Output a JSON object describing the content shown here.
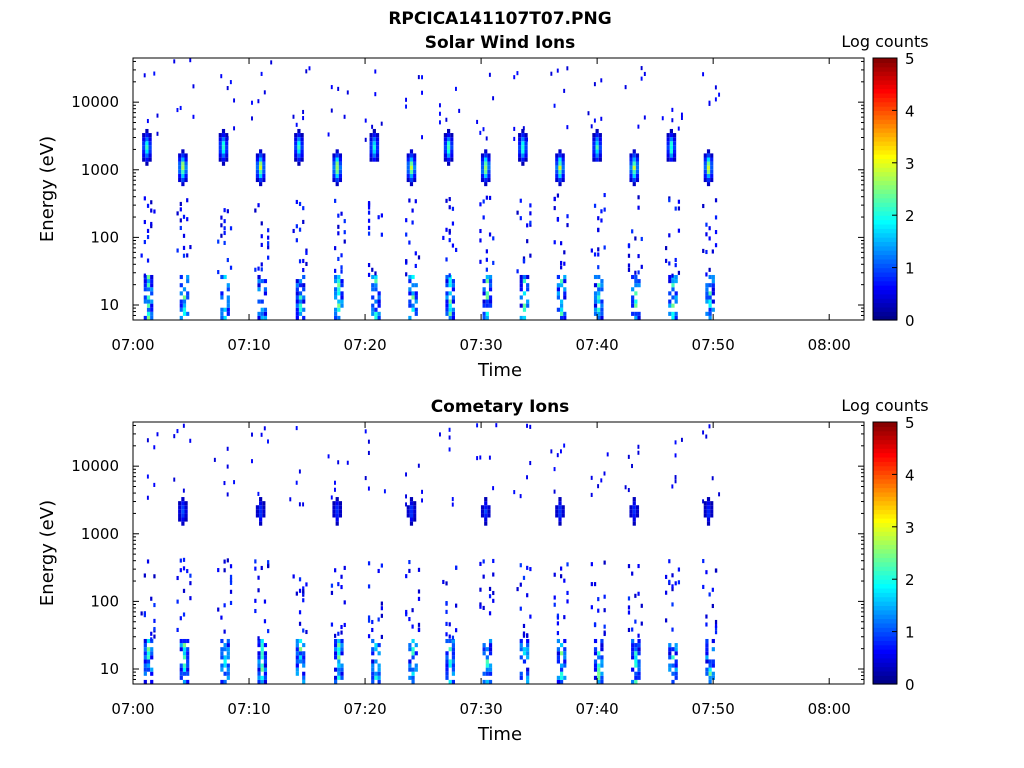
{
  "figure_title": "RPCICA141107T07.PNG",
  "colors": {
    "colormap": [
      "#00007f",
      "#0000ff",
      "#007fff",
      "#00ffff",
      "#7fff7f",
      "#ffff00",
      "#ff7f00",
      "#ff0000",
      "#7f0000"
    ]
  },
  "chart_data": [
    {
      "type": "heatmap",
      "title": "Solar Wind Ions",
      "xlabel": "Time",
      "ylabel": "Energy (eV)",
      "x_tick_labels": [
        "07:00",
        "07:10",
        "07:20",
        "07:30",
        "07:40",
        "07:50",
        "08:00"
      ],
      "x_tick_minutes": [
        0,
        10,
        20,
        30,
        40,
        50,
        60
      ],
      "xlim_minutes": [
        0,
        63
      ],
      "ylim": [
        6,
        45000
      ],
      "yscale": "log",
      "y_tick_labels": [
        "10",
        "100",
        "1000",
        "10000"
      ],
      "y_tick_values": [
        10,
        100,
        1000,
        10000
      ],
      "colorbar": {
        "label": "Log counts",
        "min": 0,
        "max": 5,
        "tick_labels": [
          "0",
          "1",
          "2",
          "3",
          "4",
          "5"
        ]
      },
      "scan_times_minutes": [
        1.2,
        4.3,
        7.8,
        11.0,
        14.3,
        17.6,
        20.8,
        24.0,
        27.2,
        30.4,
        33.6,
        36.8,
        40.0,
        43.2,
        46.4,
        49.6
      ],
      "peaks": [
        {
          "t": 1.2,
          "energy": 2000,
          "log_counts": 2.3
        },
        {
          "t": 4.3,
          "energy": 1000,
          "log_counts": 3.0
        },
        {
          "t": 7.8,
          "energy": 2000,
          "log_counts": 2.3
        },
        {
          "t": 11.0,
          "energy": 1000,
          "log_counts": 3.0
        },
        {
          "t": 14.3,
          "energy": 2000,
          "log_counts": 2.3
        },
        {
          "t": 17.6,
          "energy": 1000,
          "log_counts": 3.0
        },
        {
          "t": 20.8,
          "energy": 2000,
          "log_counts": 2.3
        },
        {
          "t": 24.0,
          "energy": 1000,
          "log_counts": 3.0
        },
        {
          "t": 27.2,
          "energy": 2000,
          "log_counts": 2.3
        },
        {
          "t": 30.4,
          "energy": 1000,
          "log_counts": 3.0
        },
        {
          "t": 33.6,
          "energy": 2000,
          "log_counts": 2.3
        },
        {
          "t": 36.8,
          "energy": 1000,
          "log_counts": 3.0
        },
        {
          "t": 40.0,
          "energy": 2000,
          "log_counts": 2.3
        },
        {
          "t": 43.2,
          "energy": 1000,
          "log_counts": 3.0
        },
        {
          "t": 46.4,
          "energy": 2000,
          "log_counts": 2.3
        },
        {
          "t": 49.6,
          "energy": 1000,
          "log_counts": 3.0
        }
      ],
      "low_energy_band": {
        "energy_range": [
          6,
          25
        ],
        "log_counts": 2.5
      }
    },
    {
      "type": "heatmap",
      "title": "Cometary Ions",
      "xlabel": "Time",
      "ylabel": "Energy (eV)",
      "x_tick_labels": [
        "07:00",
        "07:10",
        "07:20",
        "07:30",
        "07:40",
        "07:50",
        "08:00"
      ],
      "x_tick_minutes": [
        0,
        10,
        20,
        30,
        40,
        50,
        60
      ],
      "xlim_minutes": [
        0,
        63
      ],
      "ylim": [
        6,
        45000
      ],
      "yscale": "log",
      "y_tick_labels": [
        "10",
        "100",
        "1000",
        "10000"
      ],
      "y_tick_values": [
        10,
        100,
        1000,
        10000
      ],
      "colorbar": {
        "label": "Log counts",
        "min": 0,
        "max": 5,
        "tick_labels": [
          "0",
          "1",
          "2",
          "3",
          "4",
          "5"
        ]
      },
      "scan_times_minutes": [
        1.2,
        4.3,
        7.8,
        11.0,
        14.3,
        17.6,
        20.8,
        24.0,
        27.2,
        30.4,
        33.6,
        36.8,
        40.0,
        43.2,
        46.4,
        49.6
      ],
      "peaks": [
        {
          "t": 4.3,
          "energy": 2000,
          "log_counts": 1.2
        },
        {
          "t": 11.0,
          "energy": 2000,
          "log_counts": 1.0
        },
        {
          "t": 17.6,
          "energy": 2000,
          "log_counts": 1.0
        },
        {
          "t": 24.0,
          "energy": 2000,
          "log_counts": 1.0
        },
        {
          "t": 30.4,
          "energy": 2000,
          "log_counts": 1.0
        },
        {
          "t": 36.8,
          "energy": 2000,
          "log_counts": 1.0
        },
        {
          "t": 43.2,
          "energy": 2000,
          "log_counts": 1.0
        },
        {
          "t": 49.6,
          "energy": 2000,
          "log_counts": 1.0
        }
      ],
      "low_energy_band": {
        "energy_range": [
          6,
          25
        ],
        "log_counts": 2.5
      }
    }
  ]
}
